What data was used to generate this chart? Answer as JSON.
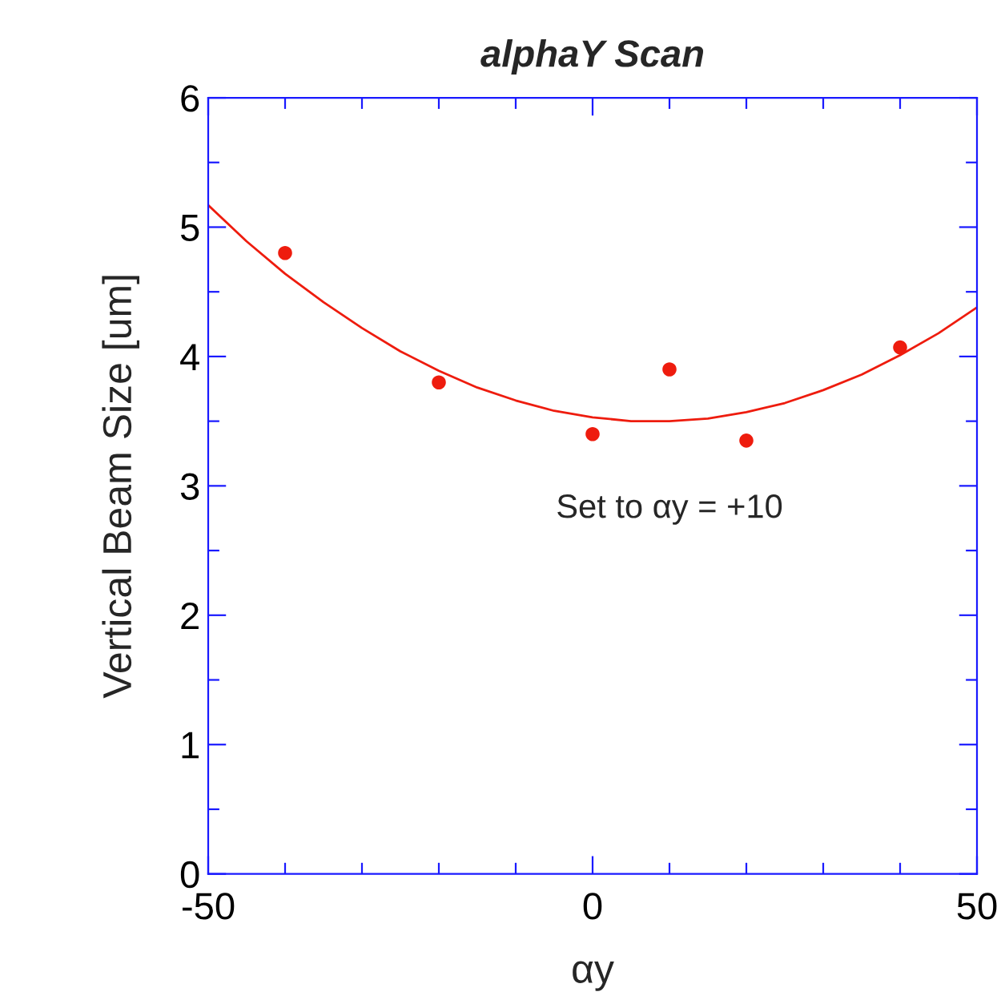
{
  "chart_data": {
    "type": "scatter",
    "title": "alphaY Scan",
    "xlabel": "αy",
    "ylabel": "Vertical Beam Size [um]",
    "series": [
      {
        "color": "#ee1c0e",
        "x": [
          -40,
          -20,
          0,
          10,
          20,
          40
        ],
        "values": [
          4.8,
          3.8,
          3.4,
          3.9,
          3.35,
          4.07
        ],
        "marker": "circle"
      },
      {
        "type": "line",
        "color": "#ee1c0e",
        "x": [
          -50,
          -45,
          -40,
          -35,
          -30,
          -25,
          -20,
          -15,
          -10,
          -5,
          0,
          5,
          10,
          15,
          20,
          25,
          30,
          35,
          40,
          45,
          50
        ],
        "values": [
          5.17,
          4.89,
          4.64,
          4.42,
          4.22,
          4.04,
          3.89,
          3.76,
          3.66,
          3.58,
          3.53,
          3.5,
          3.5,
          3.52,
          3.57,
          3.64,
          3.74,
          3.86,
          4.01,
          4.18,
          4.38
        ],
        "marker": "none",
        "line_style": "solid"
      }
    ],
    "annotations": [
      "Set to αy = +10"
    ],
    "xlim": [
      -50,
      50
    ],
    "ylim": [
      0,
      6
    ],
    "xticks": [
      -50,
      {
        "value": -40,
        "label": null
      },
      {
        "value": -30,
        "label": null
      },
      {
        "value": -20,
        "label": null
      },
      {
        "value": -10,
        "label": null
      },
      0,
      {
        "value": 10,
        "label": null
      },
      {
        "value": 20,
        "label": null
      },
      {
        "value": 30,
        "label": null
      },
      {
        "value": 40,
        "label": null
      },
      50
    ],
    "yticks": [
      0,
      {
        "value": 0.5,
        "label": null
      },
      1,
      {
        "value": 1.5,
        "label": null
      },
      2,
      {
        "value": 2.5,
        "label": null
      },
      3,
      {
        "value": 3.5,
        "label": null
      },
      4,
      {
        "value": 4.5,
        "label": null
      },
      5,
      {
        "value": 5.5,
        "label": null
      },
      6
    ],
    "grid": false,
    "legend": false
  }
}
